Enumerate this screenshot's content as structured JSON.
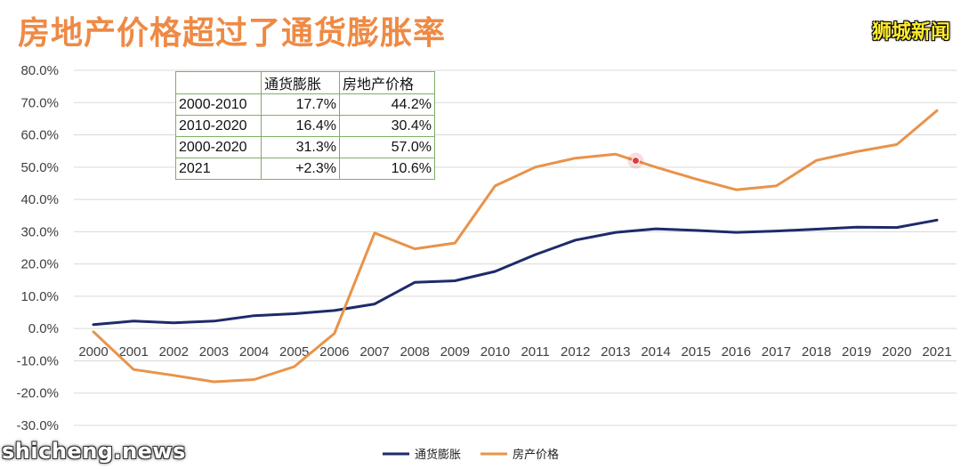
{
  "title": "房地产价格超过了通货膨胀率",
  "brand_top_right": "狮城新闻",
  "brand_bottom_left": "shicheng.news",
  "colors": {
    "title": "#ee8a45",
    "inflation": "#1f2a6b",
    "property": "#e8934a",
    "table_border": "#7fae68",
    "gridline": "#d9d9d9"
  },
  "table": {
    "headers": [
      "",
      "通货膨胀",
      "房地产价格"
    ],
    "rows": [
      [
        "2000-2010",
        "17.7%",
        "44.2%"
      ],
      [
        "2010-2020",
        "16.4%",
        "30.4%"
      ],
      [
        "2000-2020",
        "31.3%",
        "57.0%"
      ],
      [
        "2021",
        "+2.3%",
        "10.6%"
      ]
    ]
  },
  "chart_data": {
    "type": "line",
    "title": "房地产价格超过了通货膨胀率",
    "xlabel": "",
    "ylabel": "",
    "x": [
      "2000",
      "2001",
      "2002",
      "2003",
      "2004",
      "2005",
      "2006",
      "2007",
      "2008",
      "2009",
      "2010",
      "2011",
      "2012",
      "2013",
      "2014",
      "2015",
      "2016",
      "2017",
      "2018",
      "2019",
      "2020",
      "2021"
    ],
    "y_ticks": [
      "80.0%",
      "70.0%",
      "60.0%",
      "50.0%",
      "40.0%",
      "30.0%",
      "20.0%",
      "10.0%",
      "0.0%",
      "-10.0%",
      "-20.0%",
      "-30.0%"
    ],
    "ylim": [
      -30,
      80
    ],
    "grid": true,
    "legend_position": "bottom",
    "series": [
      {
        "name": "通货膨胀",
        "color": "#1f2a6b",
        "values": [
          1.2,
          2.3,
          1.8,
          2.3,
          4.0,
          4.6,
          5.6,
          7.6,
          14.3,
          14.8,
          17.7,
          22.9,
          27.4,
          29.8,
          30.9,
          30.4,
          29.8,
          30.2,
          30.8,
          31.4,
          31.3,
          33.6
        ]
      },
      {
        "name": "房产价格",
        "color": "#e8934a",
        "values": [
          -1.0,
          -12.7,
          -14.5,
          -16.5,
          -15.8,
          -11.8,
          -1.5,
          29.6,
          24.7,
          26.5,
          44.2,
          50.0,
          52.8,
          54.0,
          50.0,
          46.3,
          43.0,
          44.2,
          52.1,
          54.8,
          57.0,
          67.5
        ]
      }
    ],
    "annotations": [
      {
        "type": "marker",
        "x": 2013.5,
        "y": 52,
        "color": "#e03c3c"
      }
    ]
  }
}
